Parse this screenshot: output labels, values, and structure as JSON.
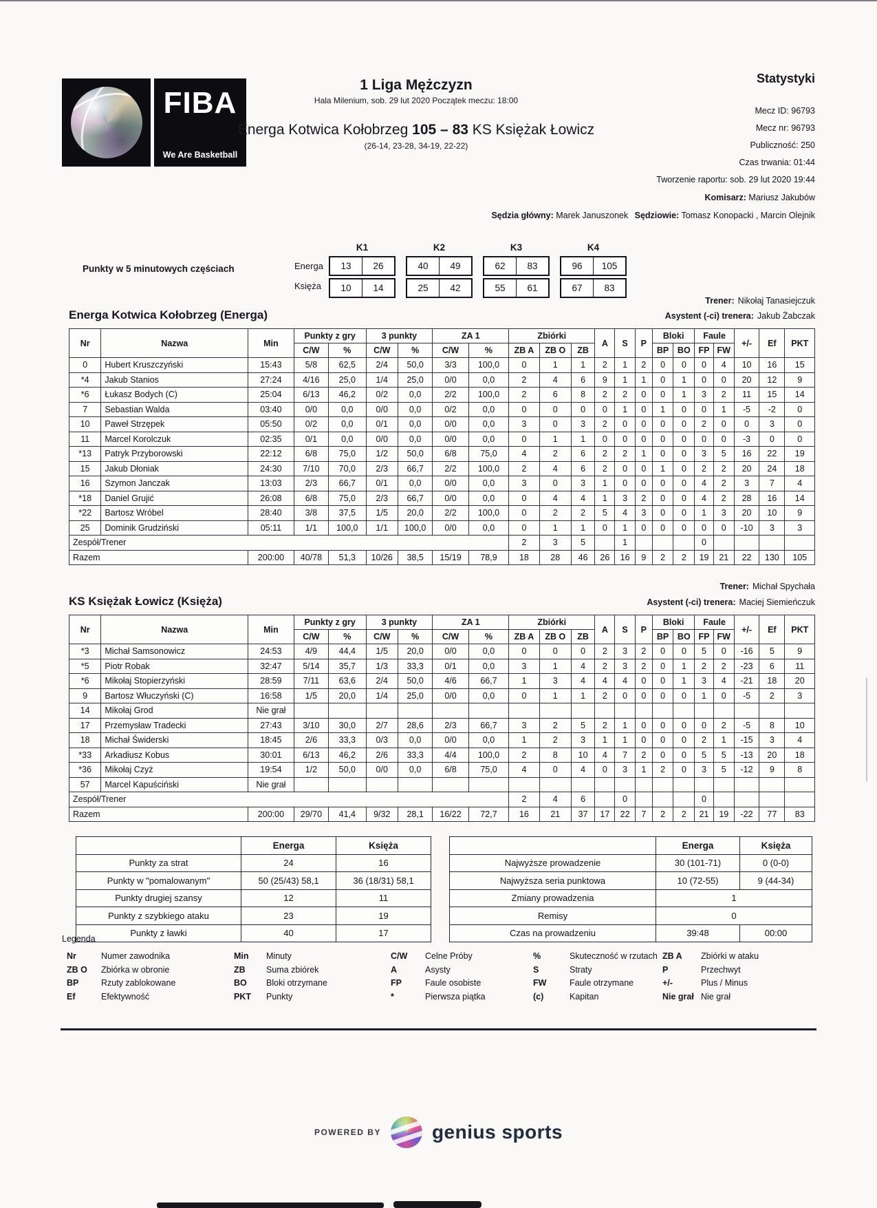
{
  "fiba_logo": {
    "brand": "FIBA",
    "tagline": "We Are Basketball"
  },
  "header": {
    "league": "1 Liga Mężczyzn",
    "venue_line": "Hala Milenium, sob. 29 lut 2020 Początek meczu: 18:00",
    "match": {
      "home": "Energa Kotwica Kołobrzeg",
      "home_score": "105",
      "separator": "–",
      "away_score": "83",
      "away": "KS Księżak Łowicz"
    },
    "quarter_breakdown": "(26-14, 23-28, 34-19, 22-22)",
    "stats_title": "Statystyki",
    "meta": [
      "Mecz ID: 96793",
      "Mecz nr: 96793",
      "Publiczność: 250",
      "Czas trwania: 01:44",
      "Tworzenie raportu: sob. 29 lut 2020 19:44"
    ],
    "komisarz_label": "Komisarz:",
    "komisarz": "Mariusz Jakubów",
    "sedzia_glowny_label": "Sędzia główny:",
    "sedzia_glowny": "Marek Januszonek",
    "sedziowie_label": "Sędziowie:",
    "sedziowie": "Tomasz Konopacki , Marcin Olejnik"
  },
  "quarter_scores": {
    "label": "Punkty w 5 minutowych częściach",
    "periods": [
      "K1",
      "K2",
      "K3",
      "K4"
    ],
    "teams": [
      {
        "name": "Energa",
        "values": [
          [
            "13",
            "26"
          ],
          [
            "40",
            "49"
          ],
          [
            "62",
            "83"
          ],
          [
            "96",
            "105"
          ]
        ]
      },
      {
        "name": "Księża",
        "values": [
          [
            "10",
            "14"
          ],
          [
            "25",
            "42"
          ],
          [
            "55",
            "61"
          ],
          [
            "67",
            "83"
          ]
        ]
      }
    ]
  },
  "stats_table": {
    "headers": {
      "nr": "Nr",
      "nazwa": "Nazwa",
      "min": "Min",
      "fg": "Punkty z gry",
      "tp": "3 punkty",
      "ft": "ZA 1",
      "cw": "C/W",
      "pct": "%",
      "reb": "Zbiórki",
      "zba": "ZB A",
      "zbo": "ZB O",
      "zb": "ZB",
      "a": "A",
      "s": "S",
      "p": "P",
      "blocks": "Bloki",
      "fouls": "Faule",
      "bp": "BP",
      "bo": "BO",
      "fp": "FP",
      "fw": "FW",
      "pm": "+/-",
      "ef": "Ef",
      "pkt": "PKT"
    },
    "team_row_label": "Zespół/Trener",
    "totals_label": "Razem",
    "coach_label": "Trener:",
    "assistant_label": "Asystent (-ci) trenera:"
  },
  "teams": [
    {
      "title": "Energa Kotwica Kołobrzeg (Energa)",
      "coach": "Nikołaj Tanasiejczuk",
      "assistant": "Jakub Żabczak",
      "players": [
        [
          "0",
          "Hubert Kruszczyński",
          "15:43",
          "5/8",
          "62,5",
          "2/4",
          "50,0",
          "3/3",
          "100,0",
          "0",
          "1",
          "1",
          "2",
          "1",
          "2",
          "0",
          "0",
          "0",
          "4",
          "10",
          "16",
          "15"
        ],
        [
          "*4",
          "Jakub Stanios",
          "27:24",
          "4/16",
          "25,0",
          "1/4",
          "25,0",
          "0/0",
          "0,0",
          "2",
          "4",
          "6",
          "9",
          "1",
          "1",
          "0",
          "1",
          "0",
          "0",
          "20",
          "12",
          "9"
        ],
        [
          "*6",
          "Łukasz Bodych (C)",
          "25:04",
          "6/13",
          "46,2",
          "0/2",
          "0,0",
          "2/2",
          "100,0",
          "2",
          "6",
          "8",
          "2",
          "2",
          "0",
          "0",
          "1",
          "3",
          "2",
          "11",
          "15",
          "14"
        ],
        [
          "7",
          "Sebastian Walda",
          "03:40",
          "0/0",
          "0,0",
          "0/0",
          "0,0",
          "0/2",
          "0,0",
          "0",
          "0",
          "0",
          "0",
          "1",
          "0",
          "1",
          "0",
          "0",
          "1",
          "-5",
          "-2",
          "0"
        ],
        [
          "10",
          "Paweł Strzępek",
          "05:50",
          "0/2",
          "0,0",
          "0/1",
          "0,0",
          "0/0",
          "0,0",
          "3",
          "0",
          "3",
          "2",
          "0",
          "0",
          "0",
          "0",
          "2",
          "0",
          "0",
          "3",
          "0"
        ],
        [
          "11",
          "Marcel Korolczuk",
          "02:35",
          "0/1",
          "0,0",
          "0/0",
          "0,0",
          "0/0",
          "0,0",
          "0",
          "1",
          "1",
          "0",
          "0",
          "0",
          "0",
          "0",
          "0",
          "0",
          "-3",
          "0",
          "0"
        ],
        [
          "*13",
          "Patryk Przyborowski",
          "22:12",
          "6/8",
          "75,0",
          "1/2",
          "50,0",
          "6/8",
          "75,0",
          "4",
          "2",
          "6",
          "2",
          "2",
          "1",
          "0",
          "0",
          "3",
          "5",
          "16",
          "22",
          "19"
        ],
        [
          "15",
          "Jakub Dłoniak",
          "24:30",
          "7/10",
          "70,0",
          "2/3",
          "66,7",
          "2/2",
          "100,0",
          "2",
          "4",
          "6",
          "2",
          "0",
          "0",
          "1",
          "0",
          "2",
          "2",
          "20",
          "24",
          "18"
        ],
        [
          "16",
          "Szymon Janczak",
          "13:03",
          "2/3",
          "66,7",
          "0/1",
          "0,0",
          "0/0",
          "0,0",
          "3",
          "0",
          "3",
          "1",
          "0",
          "0",
          "0",
          "0",
          "4",
          "2",
          "3",
          "7",
          "4"
        ],
        [
          "*18",
          "Daniel Grujić",
          "26:08",
          "6/8",
          "75,0",
          "2/3",
          "66,7",
          "0/0",
          "0,0",
          "0",
          "4",
          "4",
          "1",
          "3",
          "2",
          "0",
          "0",
          "4",
          "2",
          "28",
          "16",
          "14"
        ],
        [
          "*22",
          "Bartosz Wróbel",
          "28:40",
          "3/8",
          "37,5",
          "1/5",
          "20,0",
          "2/2",
          "100,0",
          "0",
          "2",
          "2",
          "5",
          "4",
          "3",
          "0",
          "0",
          "1",
          "3",
          "20",
          "10",
          "9"
        ],
        [
          "25",
          "Dominik Grudziński",
          "05:11",
          "1/1",
          "100,0",
          "1/1",
          "100,0",
          "0/0",
          "0,0",
          "0",
          "1",
          "1",
          "0",
          "1",
          "0",
          "0",
          "0",
          "0",
          "0",
          "-10",
          "3",
          "3"
        ]
      ],
      "team_row": [
        "2",
        "3",
        "5",
        "",
        "1",
        "",
        "",
        "",
        "0",
        "",
        "",
        "",
        ""
      ],
      "totals": [
        "200:00",
        "40/78",
        "51,3",
        "10/26",
        "38,5",
        "15/19",
        "78,9",
        "18",
        "28",
        "46",
        "26",
        "16",
        "9",
        "2",
        "2",
        "19",
        "21",
        "22",
        "130",
        "105"
      ]
    },
    {
      "title": "KS Księżak Łowicz (Księża)",
      "coach": "Michał Spychała",
      "assistant": "Maciej Siemieńczuk",
      "players": [
        [
          "*3",
          "Michał Samsonowicz",
          "24:53",
          "4/9",
          "44,4",
          "1/5",
          "20,0",
          "0/0",
          "0,0",
          "0",
          "0",
          "0",
          "2",
          "3",
          "2",
          "0",
          "0",
          "5",
          "0",
          "-16",
          "5",
          "9"
        ],
        [
          "*5",
          "Piotr Robak",
          "32:47",
          "5/14",
          "35,7",
          "1/3",
          "33,3",
          "0/1",
          "0,0",
          "3",
          "1",
          "4",
          "2",
          "3",
          "2",
          "0",
          "1",
          "2",
          "2",
          "-23",
          "6",
          "11"
        ],
        [
          "*6",
          "Mikołaj Stopierzyński",
          "28:59",
          "7/11",
          "63,6",
          "2/4",
          "50,0",
          "4/6",
          "66,7",
          "1",
          "3",
          "4",
          "4",
          "4",
          "0",
          "0",
          "1",
          "3",
          "4",
          "-21",
          "18",
          "20"
        ],
        [
          "9",
          "Bartosz Włuczyński (C)",
          "16:58",
          "1/5",
          "20,0",
          "1/4",
          "25,0",
          "0/0",
          "0,0",
          "0",
          "1",
          "1",
          "2",
          "0",
          "0",
          "0",
          "0",
          "1",
          "0",
          "-5",
          "2",
          "3"
        ],
        [
          "14",
          "Mikołaj Grod",
          "Nie grał",
          "",
          "",
          "",
          "",
          "",
          "",
          "",
          "",
          "",
          "",
          "",
          "",
          "",
          "",
          "",
          "",
          "",
          "",
          ""
        ],
        [
          "17",
          "Przemysław Tradecki",
          "27:43",
          "3/10",
          "30,0",
          "2/7",
          "28,6",
          "2/3",
          "66,7",
          "3",
          "2",
          "5",
          "2",
          "1",
          "0",
          "0",
          "0",
          "0",
          "2",
          "-5",
          "8",
          "10"
        ],
        [
          "18",
          "Michał Świderski",
          "18:45",
          "2/6",
          "33,3",
          "0/3",
          "0,0",
          "0/0",
          "0,0",
          "1",
          "2",
          "3",
          "1",
          "1",
          "0",
          "0",
          "0",
          "2",
          "1",
          "-15",
          "3",
          "4"
        ],
        [
          "*33",
          "Arkadiusz Kobus",
          "30:01",
          "6/13",
          "46,2",
          "2/6",
          "33,3",
          "4/4",
          "100,0",
          "2",
          "8",
          "10",
          "4",
          "7",
          "2",
          "0",
          "0",
          "5",
          "5",
          "-13",
          "20",
          "18"
        ],
        [
          "*36",
          "Mikołaj Czyż",
          "19:54",
          "1/2",
          "50,0",
          "0/0",
          "0,0",
          "6/8",
          "75,0",
          "4",
          "0",
          "4",
          "0",
          "3",
          "1",
          "2",
          "0",
          "3",
          "5",
          "-12",
          "9",
          "8"
        ],
        [
          "57",
          "Marcel Kapuściński",
          "Nie grał",
          "",
          "",
          "",
          "",
          "",
          "",
          "",
          "",
          "",
          "",
          "",
          "",
          "",
          "",
          "",
          "",
          "",
          "",
          ""
        ]
      ],
      "team_row": [
        "2",
        "4",
        "6",
        "",
        "0",
        "",
        "",
        "",
        "0",
        "",
        "",
        "",
        ""
      ],
      "totals": [
        "200:00",
        "29/70",
        "41,4",
        "9/32",
        "28,1",
        "16/22",
        "72,7",
        "16",
        "21",
        "37",
        "17",
        "22",
        "7",
        "2",
        "2",
        "21",
        "19",
        "-22",
        "77",
        "83"
      ]
    }
  ],
  "summary_left": {
    "columns": [
      "Energa",
      "Księża"
    ],
    "rows": [
      {
        "label": "Punkty za strat",
        "values": [
          "24",
          "16"
        ]
      },
      {
        "label": "Punkty w \"pomalowanym\"",
        "values": [
          "50 (25/43) 58,1",
          "36 (18/31) 58,1"
        ]
      },
      {
        "label": "Punkty drugiej szansy",
        "values": [
          "12",
          "11"
        ]
      },
      {
        "label": "Punkty z szybkiego ataku",
        "values": [
          "23",
          "19"
        ]
      },
      {
        "label": "Punkty z ławki",
        "values": [
          "40",
          "17"
        ]
      }
    ]
  },
  "summary_right": {
    "columns": [
      "Energa",
      "Księża"
    ],
    "rows": [
      {
        "label": "Najwyższe prowadzenie",
        "values": [
          "30 (101-71)",
          "0 (0-0)"
        ]
      },
      {
        "label": "Najwyższa seria punktowa",
        "values": [
          "10 (72-55)",
          "9 (44-34)"
        ]
      },
      {
        "label": "Zmiany prowadzenia",
        "values": [
          "1"
        ],
        "span": true
      },
      {
        "label": "Remisy",
        "values": [
          "0"
        ],
        "span": true
      },
      {
        "label": "Czas na prowadzeniu",
        "values": [
          "39:48",
          "00:00"
        ]
      }
    ]
  },
  "legend": {
    "title": "Legenda",
    "columns": [
      [
        [
          "Nr",
          "Numer zawodnika"
        ],
        [
          "ZB O",
          "Zbiórka w obronie"
        ],
        [
          "BP",
          "Rzuty zablokowane"
        ],
        [
          "Ef",
          "Efektywność"
        ]
      ],
      [
        [
          "Min",
          "Minuty"
        ],
        [
          "ZB",
          "Suma zbiórek"
        ],
        [
          "BO",
          "Bloki otrzymane"
        ],
        [
          "PKT",
          "Punkty"
        ]
      ],
      [
        [
          "C/W",
          "Celne Próby"
        ],
        [
          "A",
          "Asysty"
        ],
        [
          "FP",
          "Faule osobiste"
        ],
        [
          "*",
          "Pierwsza piątka"
        ]
      ],
      [
        [
          "%",
          "Skuteczność w rzutach"
        ],
        [
          "S",
          "Straty"
        ],
        [
          "FW",
          "Faule otrzymane"
        ],
        [
          "(c)",
          "Kapitan"
        ]
      ],
      [
        [
          "ZB A",
          "Zbiórki w ataku"
        ],
        [
          "P",
          "Przechwyt"
        ],
        [
          "+/-",
          "Plus / Minus"
        ],
        [
          "Nie grał",
          "Nie grał"
        ]
      ]
    ]
  },
  "footer": {
    "powered_by": "POWERED BY",
    "brand": "genius sports"
  },
  "colors": {
    "ink": "#1b1a20",
    "table_border": "#332d3d",
    "brand_navy": "#222d3d"
  }
}
